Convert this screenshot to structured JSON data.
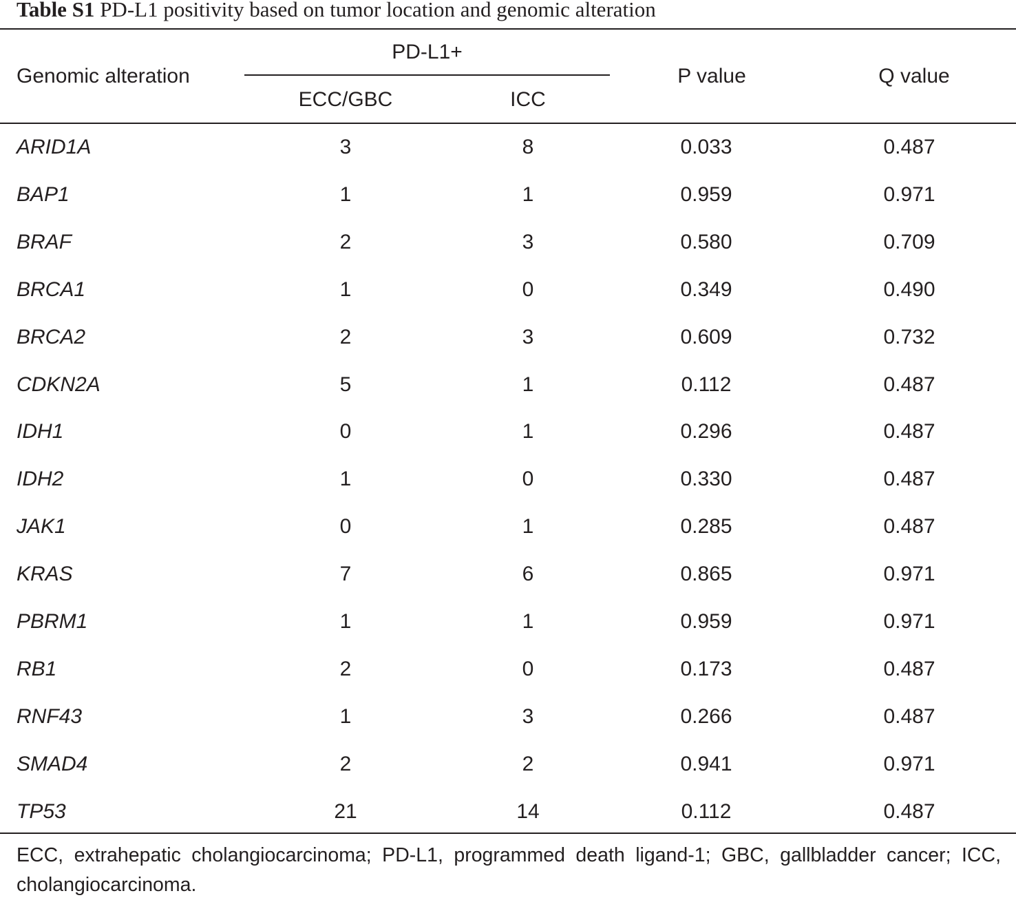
{
  "caption": {
    "label": "Table S1",
    "text": "PD-L1 positivity based on tumor location and genomic alteration"
  },
  "header": {
    "genomic_alteration": "Genomic alteration",
    "group": "PD-L1+",
    "ecc_gbc": "ECC/GBC",
    "icc": "ICC",
    "p_value": "P value",
    "q_value": "Q value"
  },
  "rows": [
    {
      "gene": "ARID1A",
      "ecc_gbc": "3",
      "icc": "8",
      "p": "0.033",
      "q": "0.487"
    },
    {
      "gene": "BAP1",
      "ecc_gbc": "1",
      "icc": "1",
      "p": "0.959",
      "q": "0.971"
    },
    {
      "gene": "BRAF",
      "ecc_gbc": "2",
      "icc": "3",
      "p": "0.580",
      "q": "0.709"
    },
    {
      "gene": "BRCA1",
      "ecc_gbc": "1",
      "icc": "0",
      "p": "0.349",
      "q": "0.490"
    },
    {
      "gene": "BRCA2",
      "ecc_gbc": "2",
      "icc": "3",
      "p": "0.609",
      "q": "0.732"
    },
    {
      "gene": "CDKN2A",
      "ecc_gbc": "5",
      "icc": "1",
      "p": "0.112",
      "q": "0.487"
    },
    {
      "gene": "IDH1",
      "ecc_gbc": "0",
      "icc": "1",
      "p": "0.296",
      "q": "0.487"
    },
    {
      "gene": "IDH2",
      "ecc_gbc": "1",
      "icc": "0",
      "p": "0.330",
      "q": "0.487"
    },
    {
      "gene": "JAK1",
      "ecc_gbc": "0",
      "icc": "1",
      "p": "0.285",
      "q": "0.487"
    },
    {
      "gene": "KRAS",
      "ecc_gbc": "7",
      "icc": "6",
      "p": "0.865",
      "q": "0.971"
    },
    {
      "gene": "PBRM1",
      "ecc_gbc": "1",
      "icc": "1",
      "p": "0.959",
      "q": "0.971"
    },
    {
      "gene": "RB1",
      "ecc_gbc": "2",
      "icc": "0",
      "p": "0.173",
      "q": "0.487"
    },
    {
      "gene": "RNF43",
      "ecc_gbc": "1",
      "icc": "3",
      "p": "0.266",
      "q": "0.487"
    },
    {
      "gene": "SMAD4",
      "ecc_gbc": "2",
      "icc": "2",
      "p": "0.941",
      "q": "0.971"
    },
    {
      "gene": "TP53",
      "ecc_gbc": "21",
      "icc": "14",
      "p": "0.112",
      "q": "0.487"
    }
  ],
  "footnote": "ECC, extrahepatic cholangiocarcinoma; PD-L1, programmed death ligand-1; GBC, gallbladder cancer; ICC, cholangiocarcinoma."
}
